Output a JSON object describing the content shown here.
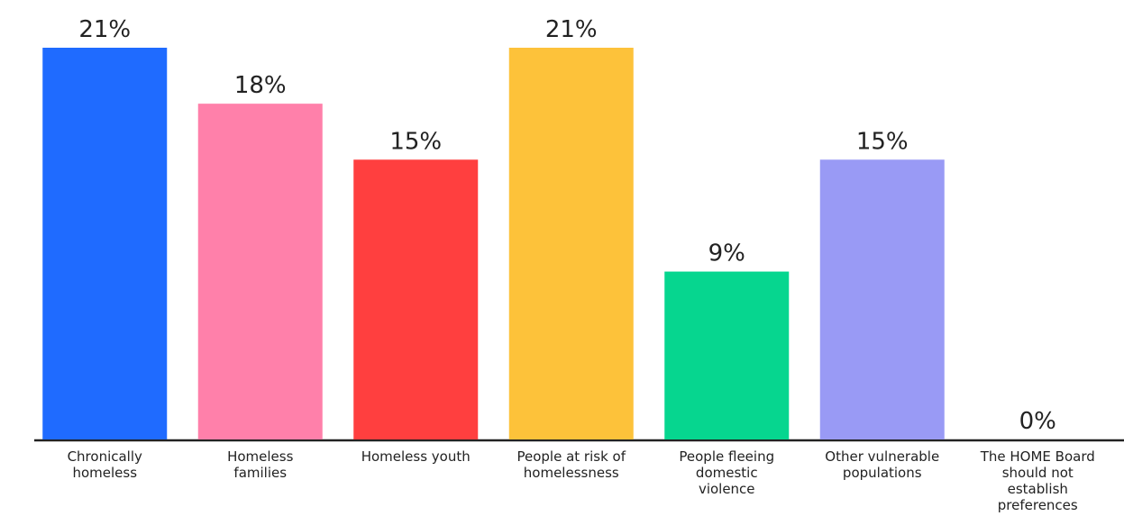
{
  "chart_data": {
    "type": "bar",
    "categories": [
      "Chronically homeless",
      "Homeless families",
      "Homeless youth",
      "People at risk of homelessness",
      "People fleeing domestic violence",
      "Other vulnerable populations",
      "The HOME Board should not establish preferences"
    ],
    "values": [
      21,
      18,
      15,
      21,
      9,
      15,
      0
    ],
    "value_labels": [
      "21%",
      "18%",
      "15%",
      "21%",
      "9%",
      "15%",
      "0%"
    ],
    "colors": [
      "#1f6bff",
      "#ff80aa",
      "#ff3f3f",
      "#fdc23a",
      "#06d68f",
      "#999af5",
      "#999af5"
    ]
  }
}
